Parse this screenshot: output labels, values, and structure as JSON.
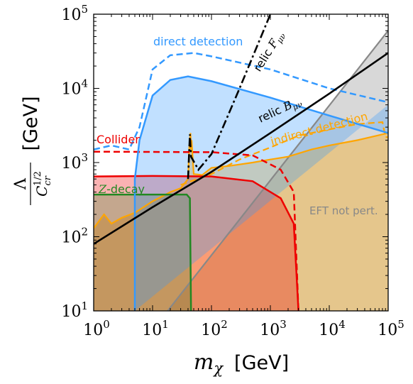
{
  "chart_data": {
    "type": "area",
    "title": "",
    "xlabel": {
      "math": "m",
      "sub": "χ",
      "unit": "[GeV]"
    },
    "ylabel": {
      "num": "Λ",
      "den": "C",
      "den_sub": "cr",
      "den_sup": "1/2",
      "unit": "[GeV]"
    },
    "xscale": "log",
    "yscale": "log",
    "xlim": [
      1,
      100000
    ],
    "ylim": [
      10,
      100000
    ],
    "grid": false,
    "legend": "none",
    "xticks": [
      {
        "base": "10",
        "exp": "0"
      },
      {
        "base": "10",
        "exp": "1"
      },
      {
        "base": "10",
        "exp": "2"
      },
      {
        "base": "10",
        "exp": "3"
      },
      {
        "base": "10",
        "exp": "4"
      },
      {
        "base": "10",
        "exp": "5"
      }
    ],
    "yticks": [
      {
        "base": "10",
        "exp": "1"
      },
      {
        "base": "10",
        "exp": "2"
      },
      {
        "base": "10",
        "exp": "3"
      },
      {
        "base": "10",
        "exp": "4"
      },
      {
        "base": "10",
        "exp": "5"
      }
    ],
    "regions": [
      {
        "id": "eft",
        "label": "EFT not pert.",
        "color": "#b8b8b8",
        "boundary": [
          [
            18,
            10
          ],
          [
            100000,
            60000
          ]
        ]
      },
      {
        "id": "indirect",
        "label": "indirect detection",
        "color": "#ffa500",
        "observed": [
          [
            1,
            130
          ],
          [
            1.5,
            200
          ],
          [
            2,
            150
          ],
          [
            3,
            180
          ],
          [
            5,
            210
          ],
          [
            10,
            300
          ],
          [
            20,
            400
          ],
          [
            30,
            450
          ],
          [
            40,
            600
          ],
          [
            42,
            1600
          ],
          [
            44,
            2500
          ],
          [
            45,
            1500
          ],
          [
            46,
            2000
          ],
          [
            50,
            700
          ],
          [
            70,
            680
          ],
          [
            100,
            850
          ],
          [
            200,
            900
          ],
          [
            500,
            1000
          ],
          [
            1000,
            1100
          ],
          [
            2000,
            1200
          ],
          [
            5000,
            1500
          ],
          [
            10000,
            1700
          ],
          [
            30000,
            2000
          ],
          [
            100000,
            2500
          ]
        ],
        "projected": [
          [
            30,
            500
          ],
          [
            100,
            700
          ],
          [
            300,
            1100
          ],
          [
            1000,
            1600
          ],
          [
            3000,
            2300
          ],
          [
            10000,
            2800
          ],
          [
            30000,
            3300
          ],
          [
            80000,
            3500
          ],
          [
            90000,
            2200
          ],
          [
            100000,
            2200
          ]
        ]
      },
      {
        "id": "collider",
        "label": "Collider",
        "color": "#ee0000",
        "observed": [
          [
            1,
            650
          ],
          [
            10,
            660
          ],
          [
            100,
            650
          ],
          [
            500,
            560
          ],
          [
            1500,
            330
          ],
          [
            2500,
            150
          ],
          [
            3000,
            10
          ]
        ],
        "projected": [
          [
            1,
            1400
          ],
          [
            100,
            1380
          ],
          [
            500,
            1250
          ],
          [
            1500,
            800
          ],
          [
            2500,
            400
          ],
          [
            3000,
            10
          ]
        ]
      },
      {
        "id": "zdecay",
        "label": "Z-decay",
        "color": "#228822",
        "boundary": [
          [
            1,
            370
          ],
          [
            38,
            370
          ],
          [
            43,
            330
          ],
          [
            45,
            10
          ]
        ]
      },
      {
        "id": "direct",
        "label": "direct detection",
        "color": "#3399ff",
        "observed": [
          [
            5,
            10
          ],
          [
            5,
            600
          ],
          [
            6,
            2000
          ],
          [
            10,
            8000
          ],
          [
            20,
            13000
          ],
          [
            40,
            14500
          ],
          [
            100,
            12500
          ],
          [
            1000,
            7500
          ],
          [
            10000,
            4300
          ],
          [
            100000,
            2500
          ]
        ],
        "projected": [
          [
            1,
            1500
          ],
          [
            2,
            1700
          ],
          [
            4,
            1500
          ],
          [
            6,
            3000
          ],
          [
            10,
            18000
          ],
          [
            20,
            28000
          ],
          [
            50,
            30000
          ],
          [
            100,
            27000
          ],
          [
            1000,
            18000
          ],
          [
            10000,
            10000
          ],
          [
            100000,
            6500
          ]
        ]
      }
    ],
    "lines": [
      {
        "id": "relic-b",
        "label": "relic",
        "label_math": "B",
        "label_sub": "μν",
        "style": "solid",
        "color": "#000000",
        "points": [
          [
            1,
            80
          ],
          [
            10,
            250
          ],
          [
            100,
            750
          ],
          [
            1000,
            2500
          ],
          [
            10000,
            8500
          ],
          [
            100000,
            30000
          ]
        ]
      },
      {
        "id": "relic-f",
        "label": "relic",
        "label_math": "F",
        "label_sub": "μν",
        "style": "dashdot",
        "color": "#000000",
        "points": [
          [
            40,
            600
          ],
          [
            43,
            2400
          ],
          [
            45,
            1200
          ],
          [
            60,
            800
          ],
          [
            100,
            1300
          ],
          [
            300,
            10000
          ],
          [
            1000,
            100000
          ]
        ]
      }
    ]
  }
}
